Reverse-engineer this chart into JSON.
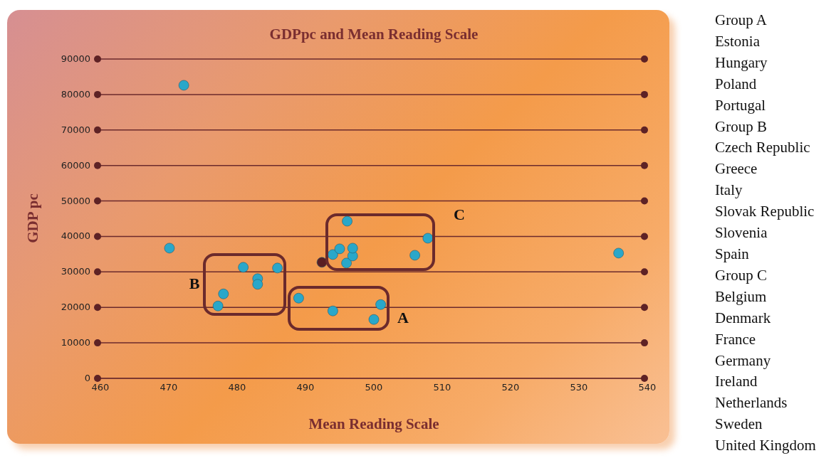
{
  "chart_data": {
    "type": "scatter",
    "title": "GDPpc and Mean Reading Scale",
    "xlabel": "Mean Reading Scale",
    "ylabel": "GDP pc",
    "series": [
      {
        "color": "#2aa7c9",
        "x": [
          472.2,
          470.1,
          477.2,
          478.0,
          480.9,
          483.0,
          483.0,
          485.9,
          489.0,
          494.0,
          500.0,
          501.0,
          494.0,
          495.0,
          496.1,
          496.0,
          496.9,
          496.9,
          506.0,
          507.9,
          535.8
        ],
        "values": [
          82600,
          36700,
          20400,
          23800,
          31300,
          28100,
          26500,
          31100,
          22600,
          19000,
          16600,
          20800,
          34900,
          36500,
          44300,
          32500,
          34500,
          36700,
          34700,
          39500,
          35300
        ]
      },
      {
        "color": "#5a1e22",
        "x": [
          492.4
        ],
        "values": [
          32700
        ]
      }
    ],
    "xlim": [
      460,
      540
    ],
    "xticks": [
      460,
      470,
      480,
      490,
      500,
      510,
      520,
      530,
      540
    ],
    "ylim": [
      0,
      90000
    ],
    "yticks": [
      0,
      10000,
      20000,
      30000,
      40000,
      50000,
      60000,
      70000,
      80000,
      90000
    ],
    "grid": "y",
    "legend": false,
    "marker": "circle",
    "annotations": [
      "A",
      "B",
      "C",
      "Group A",
      "Estonia",
      "Hungary",
      "Poland",
      "Portugal",
      "Group B",
      "Czech Republic",
      "Greece",
      "Italy",
      "Slovak Republic",
      "Slovenia",
      "Spain",
      "Group C",
      "Belgium",
      "Denmark",
      "France",
      "Germany",
      "Ireland",
      "Netherlands",
      "Sweden",
      "United Kingdom"
    ]
  }
}
